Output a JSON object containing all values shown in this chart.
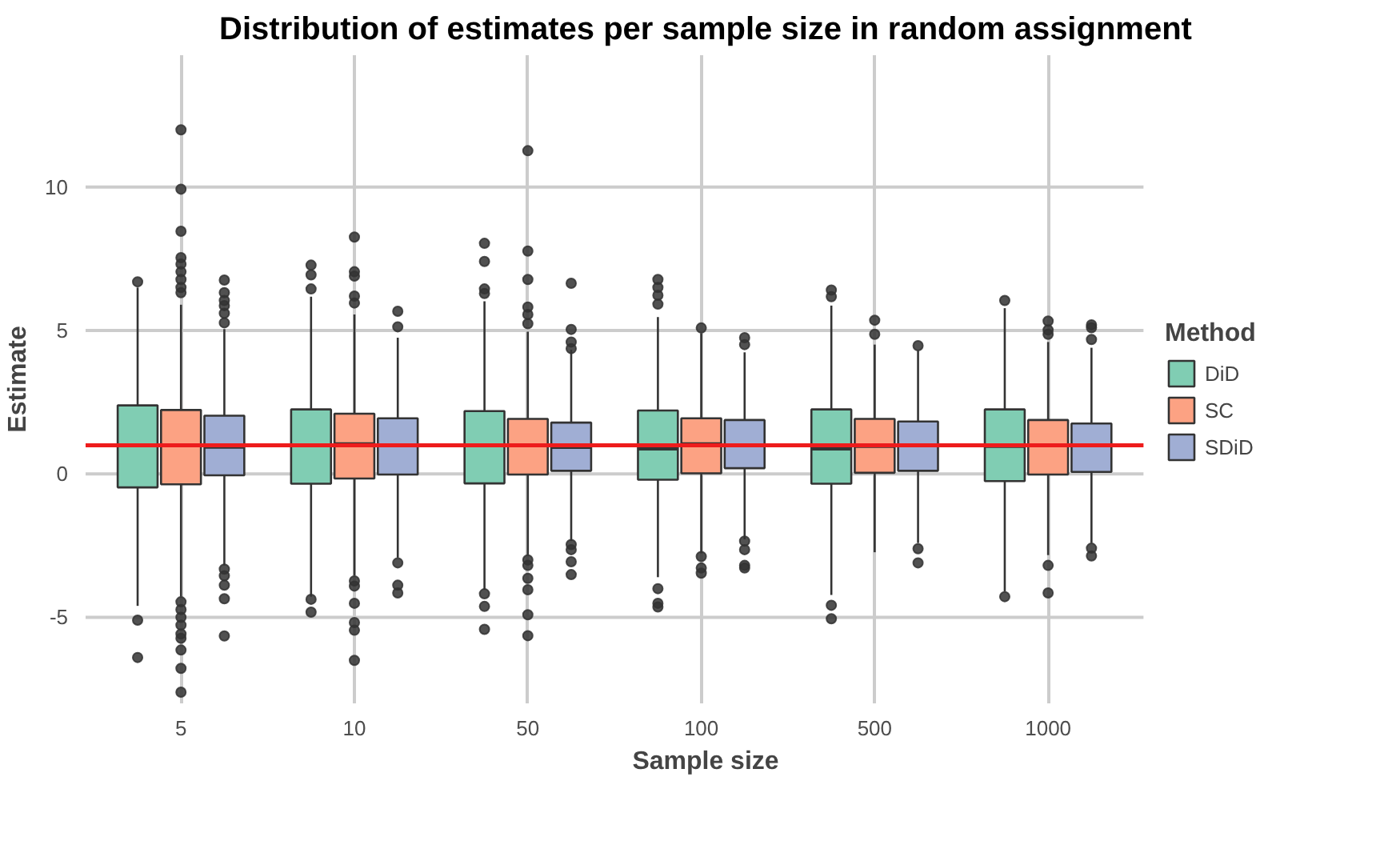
{
  "chart_data": {
    "type": "box",
    "title": "Distribution of estimates per sample size in random assignment",
    "xlabel": "Sample size",
    "ylabel": "Estimate",
    "legend_title": "Method",
    "categories": [
      "5",
      "10",
      "50",
      "100",
      "500",
      "1000"
    ],
    "ylim": [
      -8,
      14.6
    ],
    "yticks": [
      -5,
      0,
      5,
      10
    ],
    "grid": true,
    "legend": "right",
    "ref_lines": [
      {
        "axis": "y",
        "value": 1,
        "color": "#ee1c1c"
      }
    ],
    "series": [
      {
        "name": "DiD",
        "color": "#80cdb3",
        "boxes": [
          {
            "low": -4.6,
            "q1": -0.47,
            "median": 1.0,
            "q3": 2.39,
            "high": 6.5,
            "outliers": [
              6.7,
              -5.1,
              -6.4
            ]
          },
          {
            "low": -4.28,
            "q1": -0.34,
            "median": 1.0,
            "q3": 2.25,
            "high": 6.18,
            "outliers": [
              7.28,
              6.94,
              6.45,
              -4.37,
              -4.82
            ]
          },
          {
            "low": -4.04,
            "q1": -0.33,
            "median": 1.0,
            "q3": 2.19,
            "high": 6.02,
            "outliers": [
              8.04,
              7.41,
              6.45,
              6.29,
              -4.18,
              -4.62,
              -5.42
            ]
          },
          {
            "low": -3.6,
            "q1": -0.2,
            "median": 0.89,
            "q3": 2.21,
            "high": 5.47,
            "outliers": [
              6.78,
              6.5,
              6.23,
              5.92,
              -4.0,
              -4.51,
              -4.64
            ]
          },
          {
            "low": -4.22,
            "q1": -0.34,
            "median": 0.89,
            "q3": 2.25,
            "high": 5.87,
            "outliers": [
              6.41,
              6.18,
              -4.58,
              -5.05
            ]
          },
          {
            "low": -4.1,
            "q1": -0.25,
            "median": 0.98,
            "q3": 2.25,
            "high": 5.78,
            "outliers": [
              6.05,
              -4.28
            ]
          }
        ]
      },
      {
        "name": "SC",
        "color": "#fca283",
        "boxes": [
          {
            "low": -4.28,
            "q1": -0.36,
            "median": 1.0,
            "q3": 2.23,
            "high": 5.9,
            "outliers": [
              12.0,
              9.93,
              8.46,
              7.54,
              7.32,
              7.05,
              6.78,
              6.5,
              6.32,
              -4.46,
              -4.73,
              -5.0,
              -5.27,
              -5.58,
              -5.73,
              -6.14,
              -6.78,
              -7.61
            ]
          },
          {
            "low": -3.55,
            "q1": -0.16,
            "median": 1.03,
            "q3": 2.1,
            "high": 5.56,
            "outliers": [
              8.26,
              7.05,
              6.9,
              6.2,
              5.96,
              -3.73,
              -3.91,
              -4.51,
              -5.18,
              -5.45,
              -6.5
            ]
          },
          {
            "low": -2.83,
            "q1": -0.02,
            "median": 1.0,
            "q3": 1.92,
            "high": 4.96,
            "outliers": [
              11.27,
              7.77,
              6.78,
              5.82,
              5.56,
              5.24,
              -3.0,
              -3.19,
              -3.64,
              -4.04,
              -4.91,
              -5.64
            ]
          },
          {
            "low": -2.77,
            "q1": 0.02,
            "median": 1.03,
            "q3": 1.94,
            "high": 4.91,
            "outliers": [
              5.09,
              -2.88,
              -3.28,
              -3.46
            ]
          },
          {
            "low": -2.73,
            "q1": 0.04,
            "median": 0.98,
            "q3": 1.92,
            "high": 4.51,
            "outliers": [
              5.36,
              4.87
            ]
          },
          {
            "low": -2.83,
            "q1": -0.02,
            "median": 1.0,
            "q3": 1.88,
            "high": 4.6,
            "outliers": [
              5.33,
              5.02,
              4.87,
              -3.19,
              -4.15
            ]
          }
        ]
      },
      {
        "name": "SDiD",
        "color": "#a0aed4",
        "boxes": [
          {
            "low": -3.19,
            "q1": -0.05,
            "median": 0.95,
            "q3": 2.03,
            "high": 5.05,
            "outliers": [
              6.76,
              6.32,
              6.05,
              5.87,
              5.6,
              5.27,
              -3.32,
              -3.55,
              -3.88,
              -4.35,
              -5.65
            ]
          },
          {
            "low": -2.92,
            "q1": -0.02,
            "median": 1.0,
            "q3": 1.94,
            "high": 4.75,
            "outliers": [
              5.67,
              5.13,
              -3.1,
              -3.88,
              -4.15
            ]
          },
          {
            "low": -2.34,
            "q1": 0.11,
            "median": 0.94,
            "q3": 1.79,
            "high": 4.33,
            "outliers": [
              6.65,
              5.04,
              4.6,
              4.37,
              -2.46,
              -2.64,
              -3.06,
              -3.51
            ]
          },
          {
            "low": -2.28,
            "q1": 0.2,
            "median": 1.0,
            "q3": 1.88,
            "high": 4.24,
            "outliers": [
              4.75,
              4.51,
              -2.34,
              -2.64,
              -3.19,
              -3.28
            ]
          },
          {
            "low": -2.41,
            "q1": 0.11,
            "median": 1.0,
            "q3": 1.83,
            "high": 4.3,
            "outliers": [
              4.47,
              -2.61,
              -3.1
            ]
          },
          {
            "low": -2.41,
            "q1": 0.07,
            "median": 1.0,
            "q3": 1.76,
            "high": 4.4,
            "outliers": [
              5.2,
              5.1,
              4.69,
              -2.59,
              -2.86
            ]
          }
        ]
      }
    ]
  }
}
